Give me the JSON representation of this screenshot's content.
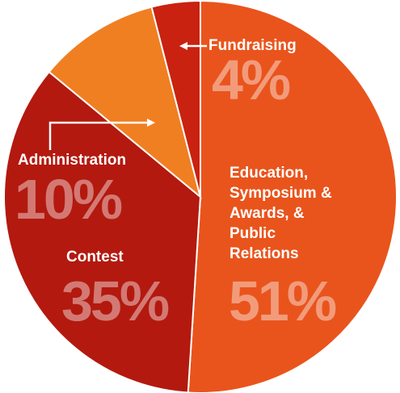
{
  "chart_data": {
    "type": "pie",
    "categories": [
      "Education, Symposium & Awards, & Public Relations",
      "Contest",
      "Administration",
      "Fundraising"
    ],
    "values": [
      51,
      35,
      10,
      4
    ],
    "value_labels": [
      "51%",
      "35%",
      "10%",
      "4%"
    ],
    "colors": [
      "#e9541c",
      "#b3190f",
      "#f07f22",
      "#c92210"
    ]
  }
}
